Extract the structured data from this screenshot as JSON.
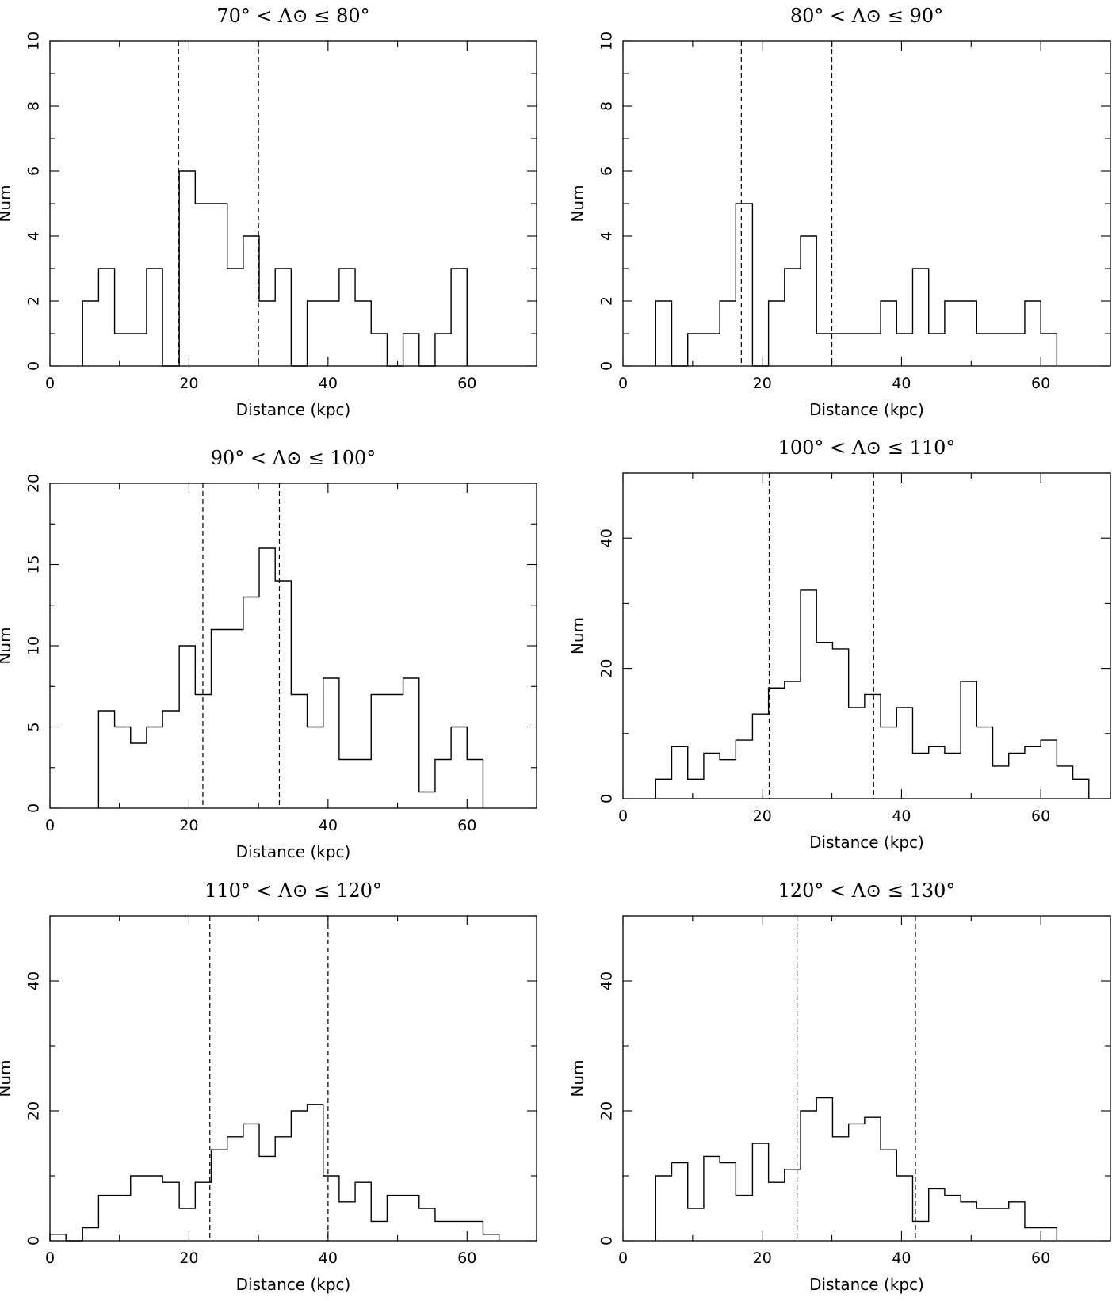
{
  "chart_data": [
    {
      "type": "histogram",
      "title": "70° < Λ⊙ ≤ 80°",
      "xlabel": "Distance (kpc)",
      "ylabel": "Num",
      "xlim": [
        0,
        70
      ],
      "ylim": [
        0,
        10
      ],
      "xticks": [
        0,
        20,
        40,
        60
      ],
      "yticks": [
        0,
        2,
        4,
        6,
        8,
        10
      ],
      "bin_edges": [
        4.7,
        7.0,
        9.3,
        11.6,
        13.9,
        16.2,
        18.6,
        20.9,
        23.2,
        25.5,
        27.8,
        30.1,
        32.4,
        34.7,
        37.0,
        39.3,
        41.6,
        43.9,
        46.2,
        48.5,
        50.8,
        53.1,
        55.4,
        57.7,
        60.0
      ],
      "counts": [
        2,
        3,
        1,
        1,
        3,
        0,
        6,
        5,
        5,
        3,
        4,
        2,
        3,
        0,
        2,
        2,
        3,
        2,
        1,
        0,
        1,
        0,
        1,
        3
      ],
      "dashed_lines": [
        18.5,
        30
      ]
    },
    {
      "type": "histogram",
      "title": "80° < Λ⊙ ≤ 90°",
      "xlabel": "Distance (kpc)",
      "ylabel": "Num",
      "xlim": [
        0,
        70
      ],
      "ylim": [
        0,
        10
      ],
      "xticks": [
        0,
        20,
        40,
        60
      ],
      "yticks": [
        0,
        2,
        4,
        6,
        8,
        10
      ],
      "bin_edges": [
        4.7,
        7.0,
        9.3,
        11.6,
        13.9,
        16.2,
        18.6,
        20.9,
        23.2,
        25.5,
        27.8,
        30.1,
        32.4,
        34.7,
        37.0,
        39.3,
        41.6,
        43.9,
        46.2,
        48.5,
        50.8,
        53.1,
        55.4,
        57.7,
        60.0,
        62.3
      ],
      "counts": [
        2,
        0,
        1,
        1,
        2,
        5,
        0,
        2,
        3,
        4,
        1,
        1,
        1,
        1,
        2,
        1,
        3,
        1,
        2,
        2,
        1,
        1,
        1,
        2,
        1
      ],
      "dashed_lines": [
        17,
        30
      ]
    },
    {
      "type": "histogram",
      "title": "90° < Λ⊙ ≤ 100°",
      "xlabel": "Distance (kpc)",
      "ylabel": "Num",
      "xlim": [
        0,
        70
      ],
      "ylim": [
        0,
        20
      ],
      "xticks": [
        0,
        20,
        40,
        60
      ],
      "yticks": [
        0,
        5,
        10,
        15,
        20
      ],
      "bin_edges": [
        7.0,
        9.3,
        11.6,
        13.9,
        16.2,
        18.6,
        20.9,
        23.2,
        25.5,
        27.8,
        30.1,
        32.4,
        34.7,
        37.0,
        39.3,
        41.6,
        43.9,
        46.2,
        48.5,
        50.8,
        53.1,
        55.4,
        57.7,
        60.0,
        62.3
      ],
      "counts": [
        6,
        5,
        4,
        5,
        6,
        10,
        7,
        11,
        11,
        13,
        16,
        14,
        7,
        5,
        8,
        3,
        3,
        7,
        7,
        8,
        1,
        3,
        5,
        3
      ],
      "dashed_lines": [
        22,
        33
      ]
    },
    {
      "type": "histogram",
      "title": "100° < Λ⊙ ≤ 110°",
      "xlabel": "Distance (kpc)",
      "ylabel": "Num",
      "xlim": [
        0,
        70
      ],
      "ylim": [
        0,
        50
      ],
      "xticks": [
        0,
        20,
        40,
        60
      ],
      "yticks": [
        0,
        20,
        40
      ],
      "bin_edges": [
        4.7,
        7.0,
        9.3,
        11.6,
        13.9,
        16.2,
        18.6,
        20.9,
        23.2,
        25.5,
        27.8,
        30.1,
        32.4,
        34.7,
        37.0,
        39.3,
        41.6,
        43.9,
        46.2,
        48.5,
        50.8,
        53.1,
        55.4,
        57.7,
        60.0,
        62.3,
        64.6,
        66.9
      ],
      "counts": [
        3,
        8,
        3,
        7,
        6,
        9,
        13,
        17,
        18,
        32,
        24,
        23,
        14,
        16,
        11,
        14,
        7,
        8,
        7,
        18,
        11,
        5,
        7,
        8,
        9,
        5,
        3
      ],
      "dashed_lines": [
        21,
        36
      ]
    },
    {
      "type": "histogram",
      "title": "110° < Λ⊙ ≤ 120°",
      "xlabel": "Distance (kpc)",
      "ylabel": "Num",
      "xlim": [
        0,
        70
      ],
      "ylim": [
        0,
        50
      ],
      "xticks": [
        0,
        20,
        40,
        60
      ],
      "yticks": [
        0,
        20,
        40
      ],
      "bin_edges": [
        0.0,
        2.3,
        4.7,
        7.0,
        9.3,
        11.6,
        13.9,
        16.2,
        18.6,
        20.9,
        23.2,
        25.5,
        27.8,
        30.1,
        32.4,
        34.7,
        37.0,
        39.3,
        41.6,
        43.9,
        46.2,
        48.5,
        50.8,
        53.1,
        55.4,
        57.7,
        60.0,
        62.3,
        64.6
      ],
      "counts": [
        1,
        0,
        2,
        7,
        7,
        10,
        10,
        9,
        5,
        9,
        14,
        16,
        18,
        13,
        16,
        20,
        21,
        10,
        6,
        9,
        3,
        7,
        7,
        5,
        3,
        3,
        3,
        1
      ],
      "dashed_lines": [
        23,
        40
      ]
    },
    {
      "type": "histogram",
      "title": "120° < Λ⊙ ≤ 130°",
      "xlabel": "Distance (kpc)",
      "ylabel": "Num",
      "xlim": [
        0,
        70
      ],
      "ylim": [
        0,
        50
      ],
      "xticks": [
        0,
        20,
        40,
        60
      ],
      "yticks": [
        0,
        20,
        40
      ],
      "bin_edges": [
        4.7,
        7.0,
        9.3,
        11.6,
        13.9,
        16.2,
        18.6,
        20.9,
        23.2,
        25.5,
        27.8,
        30.1,
        32.4,
        34.7,
        37.0,
        39.3,
        41.6,
        43.9,
        46.2,
        48.5,
        50.8,
        53.1,
        55.4,
        57.7,
        60.0,
        62.3
      ],
      "counts": [
        10,
        12,
        5,
        13,
        12,
        7,
        15,
        9,
        11,
        20,
        22,
        16,
        18,
        19,
        14,
        10,
        3,
        8,
        7,
        6,
        5,
        5,
        6,
        2,
        2
      ],
      "dashed_lines": [
        25,
        42
      ]
    }
  ]
}
